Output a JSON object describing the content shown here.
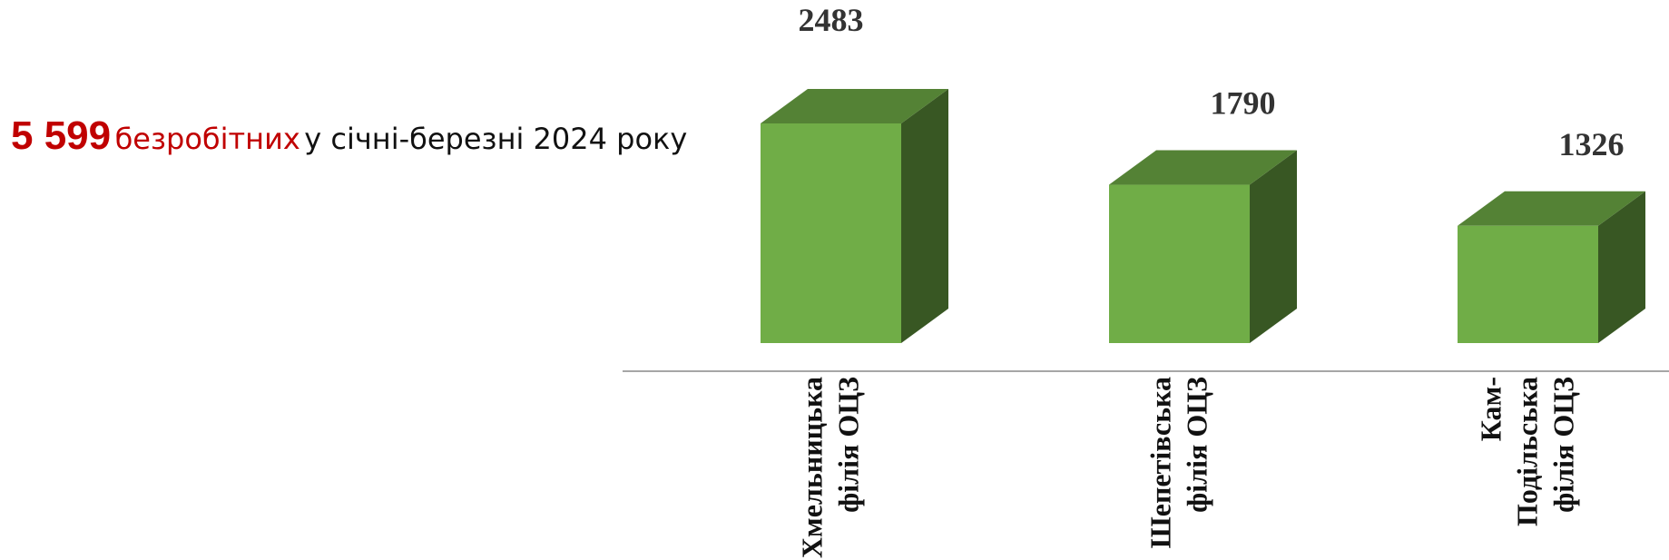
{
  "headline": {
    "number": "5 599",
    "highlight": "безробітних",
    "rest": "у січні-березні 2024 року"
  },
  "colors": {
    "front": "#70ad47",
    "top": "#548235",
    "side": "#385723",
    "axis": "#a6a6a6",
    "accent": "#c00000"
  },
  "chart_data": {
    "type": "bar",
    "style": "3d-column",
    "categories": [
      [
        "Хмельницька",
        "філія ОЦЗ"
      ],
      [
        "Шепетівська",
        "філія ОЦЗ"
      ],
      [
        "Кам-",
        "Подільська",
        "філія ОЦЗ"
      ]
    ],
    "values": [
      2483,
      1790,
      1326
    ],
    "data_labels": [
      "2483",
      "1790",
      "1326"
    ],
    "legend": "none",
    "grid": false
  }
}
